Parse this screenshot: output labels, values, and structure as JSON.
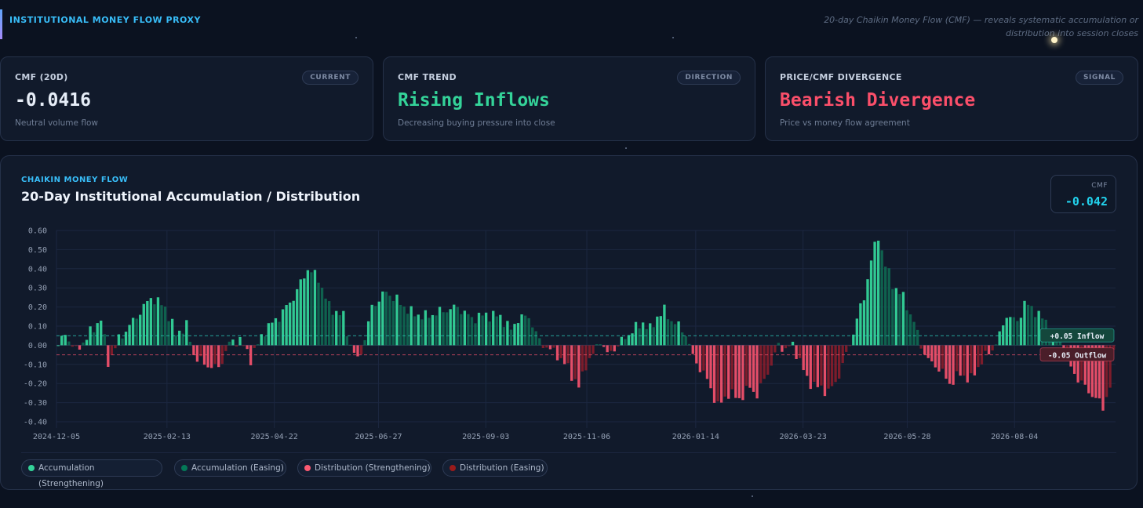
{
  "header": {
    "title": "INSTITUTIONAL MONEY FLOW PROXY",
    "description": "20-day Chaikin Money Flow (CMF) — reveals systematic accumulation or distribution into session closes"
  },
  "cards": [
    {
      "label": "CMF (20D)",
      "badge": "CURRENT",
      "value": "-0.0416",
      "value_color": "#e6edf7",
      "sub": "Neutral volume flow"
    },
    {
      "label": "CMF TREND",
      "badge": "DIRECTION",
      "value": "Rising Inflows",
      "value_color": "#34d399",
      "sub": "Decreasing buying pressure into close"
    },
    {
      "label": "PRICE/CMF DIVERGENCE",
      "badge": "SIGNAL",
      "value": "Bearish Divergence",
      "value_color": "#fb4f6a",
      "sub": "Price vs money flow agreement"
    }
  ],
  "panel": {
    "kicker": "CHAIKIN MONEY FLOW",
    "title": "20-Day Institutional Accumulation / Distribution",
    "cmf_label": "CMF",
    "cmf_value": "-0.042"
  },
  "legend": [
    {
      "label": "Accumulation (Strengthening)",
      "color": "#34d399"
    },
    {
      "label": "Accumulation (Easing)",
      "color": "#047857"
    },
    {
      "label": "Distribution (Strengthening)",
      "color": "#fb5a72"
    },
    {
      "label": "Distribution (Easing)",
      "color": "#991b1b"
    }
  ],
  "colors": {
    "acc_strong": "#34d399",
    "acc_easing": "#0f6f55",
    "dist_strong": "#f0506b",
    "dist_easing": "#8f1d2c",
    "inflow_line": "#2dd4bf",
    "outflow_line": "#f0506b"
  },
  "chart_data": {
    "type": "bar",
    "title": "20-Day Institutional Accumulation / Distribution",
    "xlabel": "",
    "ylabel": "",
    "ylim": [
      -0.4,
      0.6
    ],
    "yticks": [
      "0.60",
      "0.50",
      "0.40",
      "0.30",
      "0.20",
      "0.10",
      "0.00",
      "-0.10",
      "-0.20",
      "-0.30",
      "-0.40"
    ],
    "yvalues": [
      0.6,
      0.5,
      0.4,
      0.3,
      0.2,
      0.1,
      0.0,
      -0.1,
      -0.2,
      -0.3,
      -0.4
    ],
    "x_start": "2024-12-05",
    "x_end": "2026-10-07",
    "xticks": [
      "2024-12-05",
      "2025-02-13",
      "2025-04-22",
      "2025-06-27",
      "2025-09-03",
      "2025-11-06",
      "2026-01-14",
      "2026-03-23",
      "2026-05-28",
      "2026-08-04"
    ],
    "grid": true,
    "reference_lines": [
      {
        "value": 0.05,
        "label": "+0.05 Inflow"
      },
      {
        "value": -0.05,
        "label": "-0.05 Outflow"
      }
    ],
    "keyframes": [
      [
        0,
        0.0
      ],
      [
        2,
        0.06
      ],
      [
        5,
        -0.03
      ],
      [
        8,
        0.04
      ],
      [
        12,
        0.14
      ],
      [
        14,
        -0.09
      ],
      [
        17,
        0.03
      ],
      [
        22,
        0.15
      ],
      [
        26,
        0.25
      ],
      [
        30,
        0.2
      ],
      [
        33,
        0.06
      ],
      [
        36,
        0.1
      ],
      [
        38,
        -0.05
      ],
      [
        41,
        -0.1
      ],
      [
        45,
        -0.12
      ],
      [
        48,
        0.01
      ],
      [
        51,
        0.03
      ],
      [
        54,
        -0.07
      ],
      [
        58,
        0.08
      ],
      [
        62,
        0.15
      ],
      [
        66,
        0.25
      ],
      [
        70,
        0.4
      ],
      [
        73,
        0.35
      ],
      [
        76,
        0.2
      ],
      [
        80,
        0.15
      ],
      [
        82,
        0.0
      ],
      [
        84,
        -0.08
      ],
      [
        86,
        0.03
      ],
      [
        88,
        0.2
      ],
      [
        92,
        0.28
      ],
      [
        96,
        0.22
      ],
      [
        99,
        0.17
      ],
      [
        103,
        0.15
      ],
      [
        108,
        0.18
      ],
      [
        112,
        0.2
      ],
      [
        116,
        0.14
      ],
      [
        120,
        0.16
      ],
      [
        124,
        0.15
      ],
      [
        127,
        0.08
      ],
      [
        129,
        0.14
      ],
      [
        132,
        0.15
      ],
      [
        135,
        0.02
      ],
      [
        137,
        -0.01
      ],
      [
        140,
        -0.05
      ],
      [
        143,
        -0.12
      ],
      [
        146,
        -0.22
      ],
      [
        148,
        -0.1
      ],
      [
        150,
        -0.05
      ],
      [
        152,
        0.03
      ],
      [
        154,
        -0.05
      ],
      [
        157,
        0.0
      ],
      [
        160,
        0.06
      ],
      [
        164,
        0.12
      ],
      [
        166,
        0.08
      ],
      [
        168,
        0.15
      ],
      [
        170,
        0.18
      ],
      [
        172,
        0.13
      ],
      [
        174,
        0.1
      ],
      [
        176,
        0.06
      ],
      [
        178,
        -0.06
      ],
      [
        180,
        -0.12
      ],
      [
        182,
        -0.18
      ],
      [
        185,
        -0.32
      ],
      [
        188,
        -0.25
      ],
      [
        191,
        -0.28
      ],
      [
        194,
        -0.22
      ],
      [
        196,
        -0.26
      ],
      [
        198,
        -0.18
      ],
      [
        200,
        -0.1
      ],
      [
        202,
        0.0
      ],
      [
        204,
        -0.02
      ],
      [
        206,
        0.0
      ],
      [
        208,
        -0.08
      ],
      [
        210,
        -0.18
      ],
      [
        213,
        -0.22
      ],
      [
        216,
        -0.24
      ],
      [
        218,
        -0.2
      ],
      [
        220,
        -0.1
      ],
      [
        222,
        0.0
      ],
      [
        224,
        0.14
      ],
      [
        226,
        0.25
      ],
      [
        228,
        0.45
      ],
      [
        230,
        0.57
      ],
      [
        232,
        0.42
      ],
      [
        234,
        0.32
      ],
      [
        237,
        0.25
      ],
      [
        240,
        0.12
      ],
      [
        242,
        0.0
      ],
      [
        244,
        -0.08
      ],
      [
        247,
        -0.12
      ],
      [
        250,
        -0.2
      ],
      [
        253,
        -0.15
      ],
      [
        256,
        -0.18
      ],
      [
        259,
        -0.08
      ],
      [
        262,
        -0.02
      ],
      [
        264,
        0.05
      ],
      [
        266,
        0.16
      ],
      [
        269,
        0.12
      ],
      [
        271,
        0.22
      ],
      [
        274,
        0.18
      ],
      [
        277,
        0.12
      ],
      [
        279,
        0.06
      ],
      [
        281,
        0.02
      ],
      [
        282,
        -0.05
      ],
      [
        285,
        -0.15
      ],
      [
        288,
        -0.22
      ],
      [
        291,
        -0.28
      ],
      [
        293,
        -0.32
      ],
      [
        295,
        -0.22
      ],
      [
        296,
        -0.05
      ]
    ]
  }
}
